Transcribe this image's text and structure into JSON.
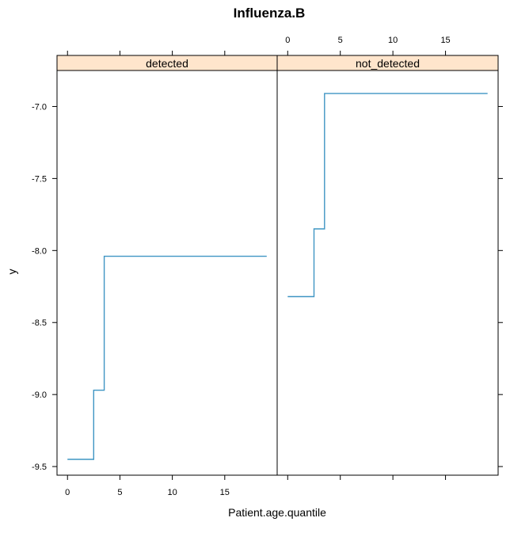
{
  "chart_data": {
    "type": "line",
    "title": "Influenza.B",
    "xlabel": "Patient.age.quantile",
    "ylabel": "y",
    "xlim": [
      -1,
      20
    ],
    "ylim": [
      -9.56,
      -6.75
    ],
    "x_ticks": [
      0,
      5,
      10,
      15
    ],
    "y_ticks": [
      -7.0,
      -7.5,
      -8.0,
      -8.5,
      -9.0,
      -9.5
    ],
    "y_tick_labels": [
      "-7.0",
      "-7.5",
      "-8.0",
      "-8.5",
      "-9.0",
      "-9.5"
    ],
    "step": true,
    "line_color": "#3f95c3",
    "strip_color": "#ffe5cc",
    "grid": false,
    "panels": [
      {
        "name": "detected",
        "series": [
          {
            "x": [
              0,
              2.5,
              2.5,
              3.5,
              3.5,
              19
            ],
            "y": [
              -9.45,
              -9.45,
              -8.97,
              -8.97,
              -8.04,
              -8.04
            ]
          }
        ]
      },
      {
        "name": "not_detected",
        "series": [
          {
            "x": [
              0,
              2.5,
              2.5,
              3.5,
              3.5,
              19
            ],
            "y": [
              -8.32,
              -8.32,
              -7.85,
              -7.85,
              -6.91,
              -6.91
            ]
          }
        ]
      }
    ]
  }
}
